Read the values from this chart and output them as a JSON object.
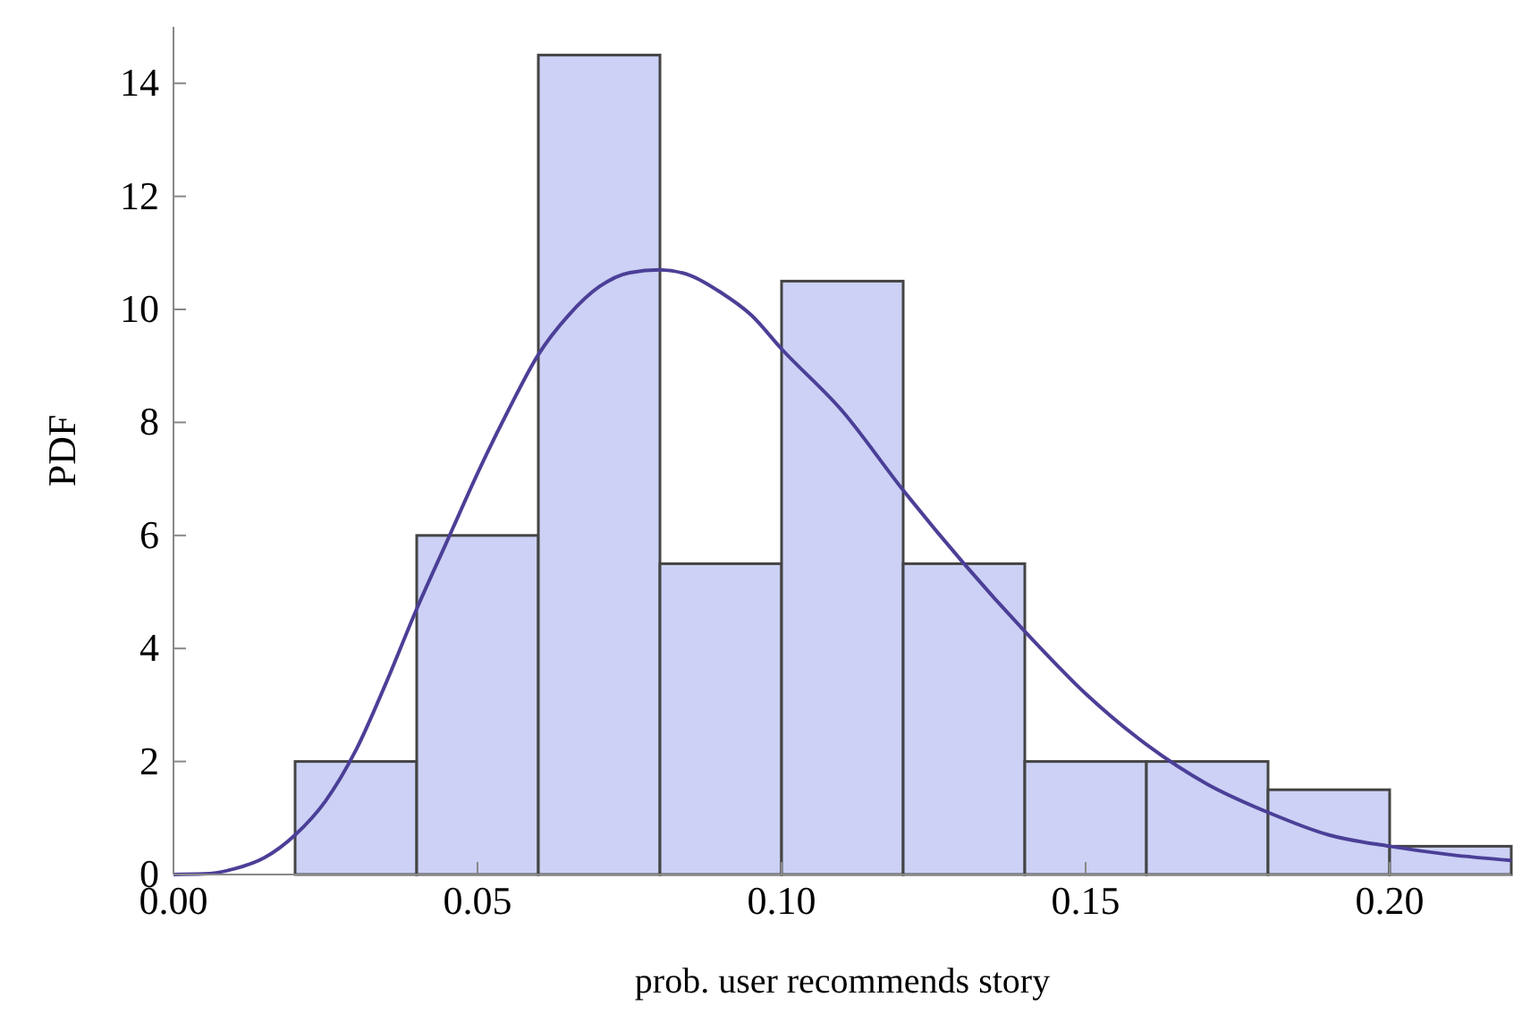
{
  "chart_data": {
    "type": "histogram",
    "xlabel": "prob. user recommends story",
    "ylabel": "PDF",
    "bins": [
      0.02,
      0.04,
      0.06,
      0.08,
      0.1,
      0.12,
      0.14,
      0.16,
      0.18,
      0.2,
      0.22
    ],
    "values": [
      2,
      6,
      14.5,
      5.5,
      10.5,
      5.5,
      2,
      2,
      1.5,
      0.5
    ],
    "color": "#ccd1f5",
    "series": [
      {
        "type": "line",
        "color": "#4b3f97",
        "x": [
          0,
          0.005,
          0.01,
          0.015,
          0.02,
          0.025,
          0.03,
          0.035,
          0.04,
          0.045,
          0.05,
          0.055,
          0.06,
          0.065,
          0.07,
          0.075,
          0.08,
          0.085,
          0.09,
          0.095,
          0.1,
          0.11,
          0.12,
          0.13,
          0.14,
          0.15,
          0.16,
          0.17,
          0.18,
          0.19,
          0.2,
          0.21,
          0.22
        ],
        "values": [
          0,
          0.01,
          0.1,
          0.3,
          0.7,
          1.3,
          2.2,
          3.4,
          4.7,
          5.9,
          7.1,
          8.2,
          9.2,
          9.9,
          10.4,
          10.65,
          10.7,
          10.6,
          10.3,
          9.9,
          9.3,
          8.2,
          6.8,
          5.5,
          4.3,
          3.2,
          2.3,
          1.6,
          1.1,
          0.7,
          0.5,
          0.35,
          0.25
        ]
      }
    ],
    "xlim": [
      0,
      0.22
    ],
    "ylim": [
      0,
      15
    ],
    "xticks": [
      {
        "value": 0,
        "label": "0.00"
      },
      {
        "value": 0.05,
        "label": "0.05"
      },
      {
        "value": 0.1,
        "label": "0.10"
      },
      {
        "value": 0.15,
        "label": "0.15"
      },
      {
        "value": 0.2,
        "label": "0.20"
      }
    ],
    "yticks": [
      0,
      2,
      4,
      6,
      8,
      10,
      12,
      14
    ],
    "grid": false
  }
}
